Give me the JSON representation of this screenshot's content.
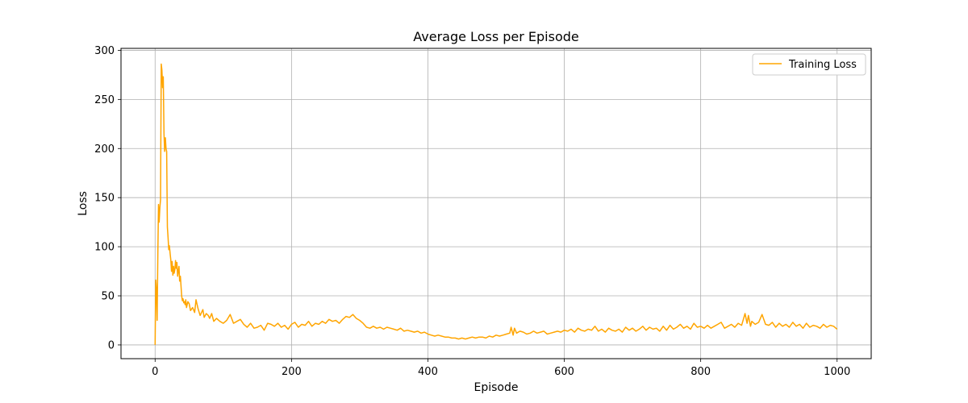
{
  "chart_data": {
    "type": "line",
    "title": "Average Loss per Episode",
    "xlabel": "Episode",
    "ylabel": "Loss",
    "xlim": [
      -50,
      1050
    ],
    "ylim": [
      -14,
      302
    ],
    "xticks": [
      0,
      200,
      400,
      600,
      800,
      1000
    ],
    "yticks": [
      0,
      50,
      100,
      150,
      200,
      250,
      300
    ],
    "grid": true,
    "legend_position": "top-right",
    "series": [
      {
        "name": "Training Loss",
        "color": "#ffa500",
        "x": [
          0,
          1,
          2,
          3,
          4,
          5,
          6,
          7,
          8,
          9,
          10,
          11,
          12,
          13,
          14,
          15,
          16,
          17,
          18,
          19,
          20,
          21,
          22,
          23,
          24,
          25,
          26,
          27,
          28,
          29,
          30,
          31,
          32,
          33,
          34,
          35,
          36,
          37,
          38,
          39,
          40,
          41,
          42,
          43,
          44,
          45,
          46,
          48,
          50,
          52,
          55,
          58,
          60,
          63,
          66,
          70,
          72,
          75,
          78,
          80,
          83,
          86,
          90,
          95,
          100,
          105,
          110,
          115,
          120,
          125,
          130,
          135,
          140,
          145,
          150,
          155,
          160,
          165,
          170,
          175,
          180,
          185,
          190,
          195,
          200,
          205,
          210,
          215,
          220,
          225,
          230,
          235,
          240,
          245,
          250,
          255,
          260,
          265,
          270,
          275,
          280,
          285,
          290,
          295,
          300,
          305,
          310,
          315,
          320,
          325,
          330,
          335,
          340,
          345,
          350,
          355,
          360,
          365,
          370,
          375,
          380,
          385,
          390,
          395,
          400,
          405,
          410,
          415,
          420,
          425,
          430,
          435,
          440,
          445,
          450,
          455,
          460,
          465,
          470,
          475,
          480,
          485,
          490,
          495,
          500,
          505,
          510,
          515,
          520,
          522,
          525,
          527,
          530,
          535,
          540,
          545,
          550,
          555,
          560,
          565,
          570,
          575,
          580,
          585,
          590,
          595,
          600,
          605,
          610,
          615,
          620,
          625,
          630,
          635,
          640,
          645,
          650,
          655,
          660,
          665,
          670,
          675,
          680,
          685,
          690,
          695,
          700,
          705,
          710,
          715,
          720,
          725,
          730,
          735,
          740,
          745,
          750,
          755,
          760,
          765,
          770,
          775,
          780,
          785,
          790,
          795,
          800,
          805,
          810,
          815,
          820,
          825,
          830,
          835,
          840,
          845,
          850,
          855,
          860,
          865,
          868,
          870,
          873,
          875,
          880,
          885,
          890,
          893,
          895,
          900,
          905,
          910,
          915,
          920,
          925,
          930,
          935,
          940,
          945,
          950,
          955,
          960,
          965,
          970,
          975,
          980,
          985,
          990,
          995,
          1000
        ],
        "y": [
          0,
          66,
          55,
          25,
          95,
          143,
          125,
          140,
          148,
          286,
          280,
          262,
          273,
          215,
          197,
          211,
          200,
          197,
          120,
          110,
          97,
          101,
          93,
          87,
          75,
          85,
          71,
          80,
          73,
          77,
          86,
          78,
          84,
          70,
          75,
          80,
          65,
          70,
          60,
          50,
          45,
          47,
          43,
          44,
          41,
          46,
          38,
          44,
          42,
          35,
          38,
          33,
          46,
          37,
          30,
          36,
          28,
          32,
          30,
          27,
          32,
          24,
          27,
          24,
          22,
          25,
          31,
          22,
          24,
          26,
          21,
          18,
          22,
          17,
          18,
          20,
          15,
          22,
          21,
          19,
          22,
          18,
          20,
          16,
          21,
          23,
          18,
          21,
          20,
          24,
          19,
          22,
          21,
          24,
          22,
          26,
          24,
          25,
          22,
          26,
          29,
          28,
          31,
          27,
          25,
          22,
          18,
          17,
          19,
          17,
          18,
          16,
          18,
          17,
          16,
          15,
          17,
          14,
          15,
          14,
          13,
          14,
          12,
          13,
          11,
          10,
          9,
          10,
          9,
          8,
          8,
          7,
          7,
          6,
          7,
          6,
          7,
          8,
          7,
          8,
          8,
          7,
          9,
          8,
          10,
          9,
          10,
          11,
          12,
          18,
          10,
          17,
          12,
          14,
          13,
          11,
          12,
          14,
          12,
          13,
          14,
          11,
          12,
          13,
          14,
          13,
          15,
          14,
          16,
          13,
          17,
          15,
          14,
          16,
          15,
          19,
          14,
          16,
          13,
          17,
          15,
          14,
          16,
          13,
          18,
          15,
          17,
          14,
          16,
          19,
          15,
          18,
          16,
          17,
          14,
          19,
          15,
          20,
          16,
          18,
          21,
          17,
          19,
          16,
          22,
          18,
          19,
          17,
          20,
          17,
          19,
          21,
          23,
          17,
          19,
          21,
          18,
          22,
          20,
          32,
          22,
          30,
          19,
          24,
          21,
          23,
          31,
          25,
          21,
          20,
          23,
          18,
          22,
          19,
          21,
          18,
          23,
          19,
          21,
          17,
          22,
          18,
          20,
          19,
          17,
          21,
          18,
          20,
          19,
          16
        ]
      }
    ]
  }
}
